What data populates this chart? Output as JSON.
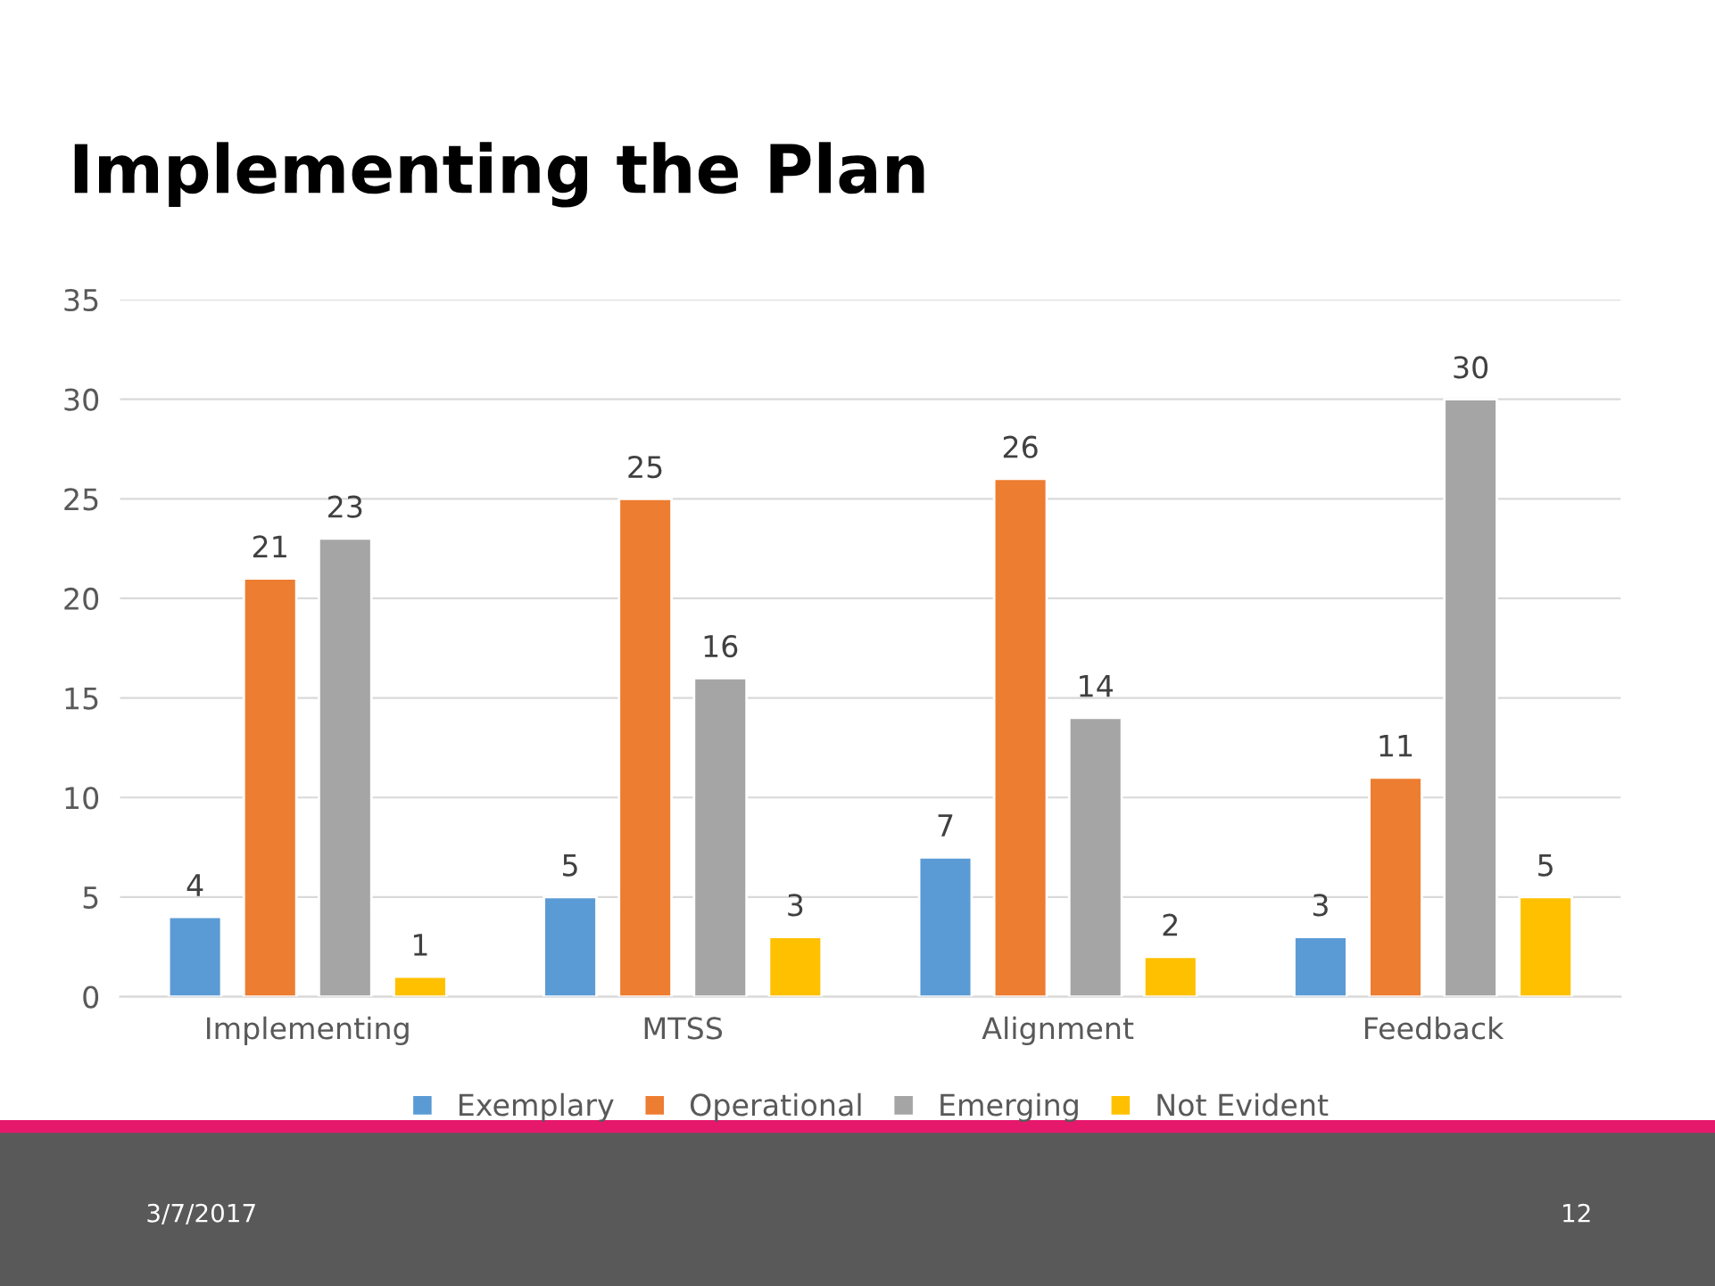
{
  "chart_data": {
    "type": "bar",
    "title": "Implementing the Plan",
    "categories": [
      "Implementing",
      "MTSS",
      "Alignment",
      "Feedback"
    ],
    "series": [
      {
        "name": "Exemplary",
        "color": "#5b9bd5",
        "values": [
          4,
          5,
          7,
          3
        ]
      },
      {
        "name": "Operational",
        "color": "#ed7d31",
        "values": [
          21,
          25,
          26,
          11
        ]
      },
      {
        "name": "Emerging",
        "color": "#a5a5a5",
        "values": [
          23,
          16,
          14,
          30
        ]
      },
      {
        "name": "Not Evident",
        "color": "#ffc000",
        "values": [
          1,
          3,
          2,
          5
        ]
      }
    ],
    "ylim": [
      0,
      35
    ],
    "yticks": [
      0,
      5,
      10,
      15,
      20,
      25,
      30,
      35
    ],
    "grid": "y",
    "legend": "bottom",
    "data_labels": true,
    "annotations": [
      "3/7/2017",
      "12"
    ]
  }
}
